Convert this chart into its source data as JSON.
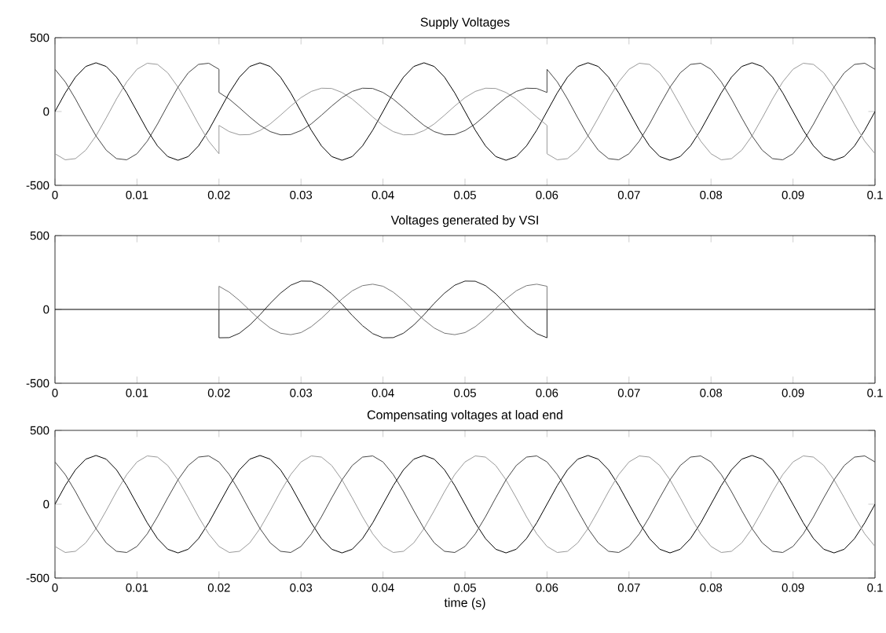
{
  "chart_data": [
    {
      "type": "line",
      "title": "Supply Voltages",
      "xlim": [
        0,
        0.1
      ],
      "ylim": [
        -500,
        500
      ],
      "xticks": [
        0,
        0.01,
        0.02,
        0.03,
        0.04,
        0.05,
        0.06,
        0.07,
        0.08,
        0.09,
        0.1
      ],
      "yticks": [
        -500,
        0,
        500
      ],
      "x": [
        0,
        0.00125,
        0.0025,
        0.00375,
        0.005,
        0.00625,
        0.0075,
        0.00875,
        0.01,
        0.01125,
        0.0125,
        0.01375,
        0.015,
        0.01625,
        0.0175,
        0.01875,
        0.02,
        0.02125,
        0.0225,
        0.02375,
        0.025,
        0.02625,
        0.0275,
        0.02875,
        0.03,
        0.03125,
        0.0325,
        0.03375,
        0.035,
        0.03625,
        0.0375,
        0.03875,
        0.04,
        0.04125,
        0.0425,
        0.04375,
        0.045,
        0.04625,
        0.0475,
        0.04875,
        0.05,
        0.05125,
        0.0525,
        0.05375,
        0.055,
        0.05625,
        0.0575,
        0.05875,
        0.06,
        0.06125,
        0.0625,
        0.06375,
        0.065,
        0.06625,
        0.0675,
        0.06875,
        0.07,
        0.07125,
        0.0725,
        0.07375,
        0.075,
        0.07625,
        0.0775,
        0.07875,
        0.08,
        0.08125,
        0.0825,
        0.08375,
        0.085,
        0.08625,
        0.0875,
        0.08875,
        0.09,
        0.09125,
        0.0925,
        0.09375,
        0.095,
        0.09625,
        0.0975,
        0.09875,
        0.1
      ],
      "series": [
        {
          "color": "#000000",
          "values": [
            0,
            126,
            233,
            305,
            330,
            305,
            233,
            126,
            0,
            -126,
            -233,
            -305,
            -330,
            -305,
            -233,
            -126,
            0,
            126,
            233,
            305,
            330,
            305,
            233,
            126,
            0,
            -126,
            -233,
            -305,
            -330,
            -305,
            -233,
            -126,
            0,
            126,
            233,
            305,
            330,
            305,
            233,
            126,
            0,
            -126,
            -233,
            -305,
            -330,
            -305,
            -233,
            -126,
            0,
            126,
            233,
            305,
            330,
            305,
            233,
            126,
            0,
            -126,
            -233,
            -305,
            -330,
            -305,
            -233,
            -126,
            0,
            126,
            233,
            305,
            330,
            305,
            233,
            126,
            0,
            -126,
            -233,
            -305,
            -330,
            -305,
            -233,
            -126,
            0
          ]
        },
        {
          "color": "#999999",
          "x": [
            0,
            0.00125,
            0.0025,
            0.00375,
            0.005,
            0.00625,
            0.0075,
            0.00875,
            0.01,
            0.01125,
            0.0125,
            0.01375,
            0.015,
            0.01625,
            0.0175,
            0.01875,
            0.02,
            0.02,
            0.02125,
            0.0225,
            0.02375,
            0.025,
            0.02625,
            0.0275,
            0.02875,
            0.03,
            0.03125,
            0.0325,
            0.03375,
            0.035,
            0.03625,
            0.0375,
            0.03875,
            0.04,
            0.04125,
            0.0425,
            0.04375,
            0.045,
            0.04625,
            0.0475,
            0.04875,
            0.05,
            0.05125,
            0.0525,
            0.05375,
            0.055,
            0.05625,
            0.0575,
            0.05875,
            0.06,
            0.06,
            0.06125,
            0.0625,
            0.06375,
            0.065,
            0.06625,
            0.0675,
            0.06875,
            0.07,
            0.07125,
            0.0725,
            0.07375,
            0.075,
            0.07625,
            0.0775,
            0.07875,
            0.08,
            0.08125,
            0.0825,
            0.08375,
            0.085,
            0.08625,
            0.0875,
            0.08875,
            0.09,
            0.09125,
            0.0925,
            0.09375,
            0.095,
            0.09625,
            0.0975,
            0.09875,
            0.1
          ],
          "values": [
            -286,
            -327,
            -319,
            -262,
            -165,
            -43,
            85,
            201,
            286,
            327,
            319,
            262,
            165,
            43,
            -85,
            -201,
            -286,
            -94,
            -136,
            -158,
            -156,
            -129,
            -84,
            -25,
            37,
            94,
            136,
            158,
            156,
            129,
            84,
            25,
            -37,
            -94,
            -136,
            -158,
            -156,
            -129,
            -84,
            -25,
            37,
            94,
            136,
            158,
            156,
            129,
            84,
            25,
            -37,
            -94,
            -286,
            -327,
            -319,
            -262,
            -165,
            -43,
            85,
            201,
            286,
            327,
            319,
            262,
            165,
            43,
            -85,
            -201,
            -286,
            -327,
            -319,
            -262,
            -165,
            -43,
            85,
            201,
            286,
            327,
            319,
            262,
            165,
            43,
            -85,
            -201,
            -286
          ]
        },
        {
          "color": "#444444",
          "x": [
            0,
            0.00125,
            0.0025,
            0.00375,
            0.005,
            0.00625,
            0.0075,
            0.00875,
            0.01,
            0.01125,
            0.0125,
            0.01375,
            0.015,
            0.01625,
            0.0175,
            0.01875,
            0.02,
            0.02,
            0.02125,
            0.0225,
            0.02375,
            0.025,
            0.02625,
            0.0275,
            0.02875,
            0.03,
            0.03125,
            0.0325,
            0.03375,
            0.035,
            0.03625,
            0.0375,
            0.03875,
            0.04,
            0.04125,
            0.0425,
            0.04375,
            0.045,
            0.04625,
            0.0475,
            0.04875,
            0.05,
            0.05125,
            0.0525,
            0.05375,
            0.055,
            0.05625,
            0.0575,
            0.05875,
            0.06,
            0.06,
            0.06125,
            0.0625,
            0.06375,
            0.065,
            0.06625,
            0.0675,
            0.06875,
            0.07,
            0.07125,
            0.0725,
            0.07375,
            0.075,
            0.07625,
            0.0775,
            0.07875,
            0.08,
            0.08125,
            0.0825,
            0.08375,
            0.085,
            0.08625,
            0.0875,
            0.08875,
            0.09,
            0.09125,
            0.0925,
            0.09375,
            0.095,
            0.09625,
            0.0975,
            0.09875,
            0.1
          ],
          "values": [
            286,
            201,
            85,
            -43,
            -165,
            -262,
            -319,
            -327,
            -286,
            -201,
            -85,
            43,
            165,
            262,
            319,
            327,
            286,
            129,
            84,
            25,
            -37,
            -94,
            -136,
            -158,
            -156,
            -129,
            -84,
            -25,
            37,
            94,
            136,
            158,
            156,
            129,
            84,
            25,
            -37,
            -94,
            -136,
            -158,
            -156,
            -129,
            -84,
            -25,
            37,
            94,
            136,
            158,
            156,
            129,
            286,
            201,
            85,
            -43,
            -165,
            -262,
            -319,
            -327,
            -286,
            -201,
            -85,
            43,
            165,
            262,
            319,
            327,
            286,
            201,
            85,
            -43,
            -165,
            -262,
            -319,
            -327,
            -286,
            -201,
            -85,
            43,
            165,
            262,
            319,
            327,
            286
          ]
        }
      ]
    },
    {
      "type": "line",
      "title": "Voltages generated by VSI",
      "xlim": [
        0,
        0.1
      ],
      "ylim": [
        -500,
        500
      ],
      "xticks": [
        0,
        0.01,
        0.02,
        0.03,
        0.04,
        0.05,
        0.06,
        0.07,
        0.08,
        0.09,
        0.1
      ],
      "yticks": [
        -500,
        0,
        500
      ],
      "series": [
        {
          "color": "#000000",
          "x": [
            0,
            0.1
          ],
          "values": [
            0,
            0
          ]
        },
        {
          "color": "#222222",
          "x": [
            0.02,
            0.02,
            0.02125,
            0.0225,
            0.02375,
            0.025,
            0.02625,
            0.0275,
            0.02875,
            0.03,
            0.03125,
            0.0325,
            0.03375,
            0.035,
            0.03625,
            0.0375,
            0.03875,
            0.04,
            0.04125,
            0.0425,
            0.04375,
            0.045,
            0.04625,
            0.0475,
            0.04875,
            0.05,
            0.05125,
            0.0525,
            0.05375,
            0.055,
            0.05625,
            0.0575,
            0.05875,
            0.06,
            0.06
          ],
          "values": [
            0,
            -192,
            -191,
            -161,
            -106,
            -36,
            41,
            110,
            164,
            192,
            191,
            161,
            106,
            36,
            -41,
            -110,
            -164,
            -192,
            -191,
            -161,
            -106,
            -36,
            41,
            110,
            164,
            192,
            191,
            161,
            106,
            36,
            -41,
            -110,
            -164,
            -192,
            0
          ]
        },
        {
          "color": "#777777",
          "x": [
            0.02,
            0.02,
            0.02125,
            0.0225,
            0.02375,
            0.025,
            0.02625,
            0.0275,
            0.02875,
            0.03,
            0.03125,
            0.0325,
            0.03375,
            0.035,
            0.03625,
            0.0375,
            0.03875,
            0.04,
            0.04125,
            0.0425,
            0.04375,
            0.045,
            0.04625,
            0.0475,
            0.04875,
            0.05,
            0.05125,
            0.0525,
            0.05375,
            0.055,
            0.05625,
            0.0575,
            0.05875,
            0.06,
            0.06
          ],
          "values": [
            0,
            157,
            117,
            60,
            -6,
            -71,
            -126,
            -161,
            -171,
            -157,
            -117,
            -60,
            6,
            71,
            126,
            161,
            171,
            157,
            117,
            60,
            -6,
            -71,
            -126,
            -161,
            -171,
            -157,
            -117,
            -60,
            6,
            71,
            126,
            161,
            171,
            157,
            0
          ]
        }
      ]
    },
    {
      "type": "line",
      "title": "Compensating voltages at load end",
      "xlabel": "time (s)",
      "xlim": [
        0,
        0.1
      ],
      "ylim": [
        -500,
        500
      ],
      "xticks": [
        0,
        0.01,
        0.02,
        0.03,
        0.04,
        0.05,
        0.06,
        0.07,
        0.08,
        0.09,
        0.1
      ],
      "yticks": [
        -500,
        0,
        500
      ],
      "x": [
        0,
        0.00125,
        0.0025,
        0.00375,
        0.005,
        0.00625,
        0.0075,
        0.00875,
        0.01,
        0.01125,
        0.0125,
        0.01375,
        0.015,
        0.01625,
        0.0175,
        0.01875,
        0.02,
        0.02125,
        0.0225,
        0.02375,
        0.025,
        0.02625,
        0.0275,
        0.02875,
        0.03,
        0.03125,
        0.0325,
        0.03375,
        0.035,
        0.03625,
        0.0375,
        0.03875,
        0.04,
        0.04125,
        0.0425,
        0.04375,
        0.045,
        0.04625,
        0.0475,
        0.04875,
        0.05,
        0.05125,
        0.0525,
        0.05375,
        0.055,
        0.05625,
        0.0575,
        0.05875,
        0.06,
        0.06125,
        0.0625,
        0.06375,
        0.065,
        0.06625,
        0.0675,
        0.06875,
        0.07,
        0.07125,
        0.0725,
        0.07375,
        0.075,
        0.07625,
        0.0775,
        0.07875,
        0.08,
        0.08125,
        0.0825,
        0.08375,
        0.085,
        0.08625,
        0.0875,
        0.08875,
        0.09,
        0.09125,
        0.0925,
        0.09375,
        0.095,
        0.09625,
        0.0975,
        0.09875,
        0.1
      ],
      "series": [
        {
          "color": "#000000",
          "values": [
            0,
            126,
            233,
            305,
            330,
            305,
            233,
            126,
            0,
            -126,
            -233,
            -305,
            -330,
            -305,
            -233,
            -126,
            0,
            126,
            233,
            305,
            330,
            305,
            233,
            126,
            0,
            -126,
            -233,
            -305,
            -330,
            -305,
            -233,
            -126,
            0,
            126,
            233,
            305,
            330,
            305,
            233,
            126,
            0,
            -126,
            -233,
            -305,
            -330,
            -305,
            -233,
            -126,
            0,
            126,
            233,
            305,
            330,
            305,
            233,
            126,
            0,
            -126,
            -233,
            -305,
            -330,
            -305,
            -233,
            -126,
            0,
            126,
            233,
            305,
            330,
            305,
            233,
            126,
            0,
            -126,
            -233,
            -305,
            -330,
            -305,
            -233,
            -126,
            0
          ]
        },
        {
          "color": "#999999",
          "values": [
            -286,
            -327,
            -319,
            -262,
            -165,
            -43,
            85,
            201,
            286,
            327,
            319,
            262,
            165,
            43,
            -85,
            -201,
            -286,
            -327,
            -319,
            -262,
            -165,
            -43,
            85,
            201,
            286,
            327,
            319,
            262,
            165,
            43,
            -85,
            -201,
            -286,
            -327,
            -319,
            -262,
            -165,
            -43,
            85,
            201,
            286,
            327,
            319,
            262,
            165,
            43,
            -85,
            -201,
            -286,
            -327,
            -319,
            -262,
            -165,
            -43,
            85,
            201,
            286,
            327,
            319,
            262,
            165,
            43,
            -85,
            -201,
            -286,
            -327,
            -319,
            -262,
            -165,
            -43,
            85,
            201,
            286,
            327,
            319,
            262,
            165,
            43,
            -85,
            -201,
            -286
          ]
        },
        {
          "color": "#444444",
          "values": [
            286,
            201,
            85,
            -43,
            -165,
            -262,
            -319,
            -327,
            -286,
            -201,
            -85,
            43,
            165,
            262,
            319,
            327,
            286,
            201,
            85,
            -43,
            -165,
            -262,
            -319,
            -327,
            -286,
            -201,
            -85,
            43,
            165,
            262,
            319,
            327,
            286,
            201,
            85,
            -43,
            -165,
            -262,
            -319,
            -327,
            -286,
            -201,
            -85,
            43,
            165,
            262,
            319,
            327,
            286,
            201,
            85,
            -43,
            -165,
            -262,
            -319,
            -327,
            -286,
            -201,
            -85,
            43,
            165,
            262,
            319,
            327,
            286,
            201,
            85,
            -43,
            -165,
            -262,
            -319,
            -327,
            -286,
            -201,
            -85,
            43,
            165,
            262,
            319,
            327,
            286
          ]
        }
      ]
    }
  ]
}
